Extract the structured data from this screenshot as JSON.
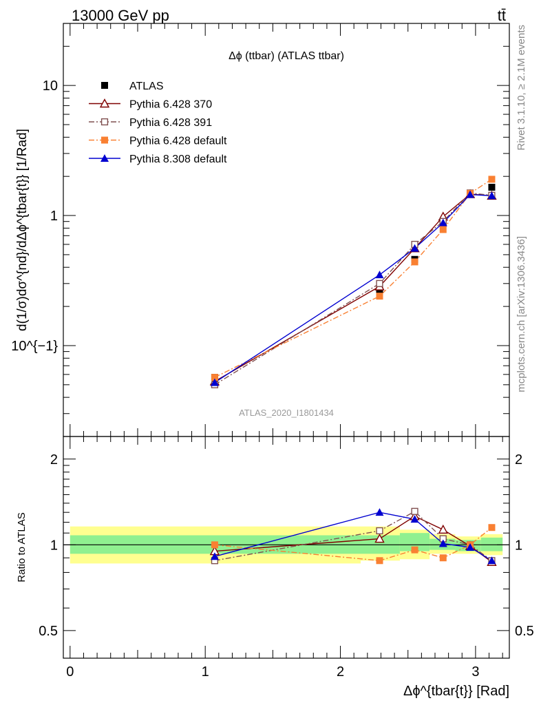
{
  "header": {
    "left": "13000 GeV pp",
    "right": "tt̄"
  },
  "side_labels": {
    "rivet": "Rivet 3.1.10, ≥ 2.1M events",
    "mcplots": "mcplots.cern.ch [arXiv:1306.3436]"
  },
  "colors": {
    "atlas": "#000000",
    "p370": "#7f0000",
    "p391": "#7f4f4f",
    "p6def": "#f98032",
    "p8def": "#0000d0",
    "band_inner": "#90f090",
    "band_outer": "#ffff90"
  },
  "chart_data": [
    {
      "type": "line",
      "title": "Δϕ (ttbar) (ATLAS ttbar)",
      "ylabel": "d(1/σ)dσ^{nd}/dΔϕ^{tbar{t}} [1/Rad]",
      "watermark": "ATLAS_2020_I1801434",
      "yscale": "log",
      "xlim": [
        -0.05,
        3.25
      ],
      "ylim": [
        0.02,
        30
      ],
      "y_ticks": [
        {
          "value": 0.1,
          "label": "10^{−1}"
        },
        {
          "value": 1,
          "label": "1"
        },
        {
          "value": 10,
          "label": "10"
        }
      ],
      "legend_position": "top-left",
      "x": [
        1.07,
        2.29,
        2.55,
        2.76,
        2.96,
        3.12
      ],
      "series": [
        {
          "name": "ATLAS",
          "marker": "square-filled",
          "line": "none",
          "values": [
            0.057,
            0.27,
            0.46,
            0.87,
            1.48,
            1.65
          ]
        },
        {
          "name": "Pythia 6.428 370",
          "marker": "triangle-open",
          "line": "solid",
          "values": [
            0.053,
            0.285,
            0.56,
            0.98,
            1.46,
            1.42
          ]
        },
        {
          "name": "Pythia 6.428 391",
          "marker": "square-open",
          "line": "dashdot",
          "values": [
            0.05,
            0.3,
            0.6,
            0.9,
            1.49,
            1.43
          ]
        },
        {
          "name": "Pythia 6.428 default",
          "marker": "square-filled",
          "line": "dashdot",
          "values": [
            0.057,
            0.24,
            0.44,
            0.78,
            1.48,
            1.9
          ]
        },
        {
          "name": "Pythia 8.308 default",
          "marker": "triangle-filled",
          "line": "solid",
          "values": [
            0.052,
            0.35,
            0.56,
            0.88,
            1.45,
            1.42
          ]
        }
      ]
    },
    {
      "type": "line",
      "ylabel": "Ratio to ATLAS",
      "xlabel": "Δϕ^{tbar{t}} [Rad]",
      "xlim": [
        -0.05,
        3.25
      ],
      "ylim": [
        0.4,
        2.4
      ],
      "yscale": "log",
      "y_ticks": [
        {
          "value": 0.5,
          "label": "0.5"
        },
        {
          "value": 1,
          "label": "1"
        },
        {
          "value": 2,
          "label": "2"
        }
      ],
      "x_ticks": [
        {
          "value": 0,
          "label": "0"
        },
        {
          "value": 1,
          "label": "1"
        },
        {
          "value": 2,
          "label": "2"
        },
        {
          "value": 3,
          "label": "3"
        }
      ],
      "x": [
        1.07,
        2.29,
        2.55,
        2.76,
        2.96,
        3.12
      ],
      "bands": [
        {
          "x0": 0.0,
          "x1": 2.15,
          "inner": [
            0.93,
            1.08
          ],
          "outer": [
            0.86,
            1.16
          ]
        },
        {
          "x0": 2.15,
          "x1": 2.44,
          "inner": [
            0.93,
            1.08
          ],
          "outer": [
            0.88,
            1.16
          ]
        },
        {
          "x0": 2.44,
          "x1": 2.66,
          "inner": [
            0.95,
            1.1
          ],
          "outer": [
            0.89,
            1.13
          ]
        },
        {
          "x0": 2.66,
          "x1": 2.85,
          "inner": [
            0.96,
            1.05
          ],
          "outer": [
            0.93,
            1.09
          ]
        },
        {
          "x0": 2.85,
          "x1": 3.04,
          "inner": [
            0.95,
            1.04
          ],
          "outer": [
            0.93,
            1.07
          ]
        },
        {
          "x0": 3.04,
          "x1": 3.2,
          "inner": [
            0.95,
            1.06
          ],
          "outer": [
            0.92,
            1.09
          ]
        }
      ],
      "series": [
        {
          "name": "Pythia 6.428 370",
          "values": [
            0.95,
            1.05,
            1.26,
            1.13,
            0.99,
            0.87
          ]
        },
        {
          "name": "Pythia 6.428 391",
          "values": [
            0.88,
            1.12,
            1.31,
            1.05,
            1.0,
            0.88
          ]
        },
        {
          "name": "Pythia 6.428 default",
          "values": [
            1.0,
            0.88,
            0.96,
            0.9,
            1.0,
            1.15
          ]
        },
        {
          "name": "Pythia 8.308 default",
          "values": [
            0.91,
            1.3,
            1.23,
            1.01,
            0.98,
            0.88
          ]
        }
      ]
    }
  ]
}
